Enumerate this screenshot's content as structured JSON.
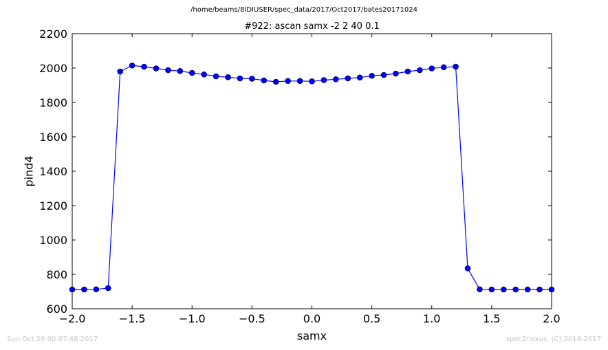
{
  "suptitle": "/home/beams/8IDIUSER/spec_data/2017/Oct2017/bates20171024",
  "footer": {
    "left": "Sun Oct 29 00:07:48 2017",
    "right": "spec2nexus, (C) 2014-2017"
  },
  "chart_data": {
    "type": "line",
    "title": "#922: ascan  samx -2 2  40 0.1",
    "xlabel": "samx",
    "ylabel": "pind4",
    "xlim": [
      -2.0,
      2.0
    ],
    "ylim": [
      600,
      2200
    ],
    "xticks": [
      -2.0,
      -1.5,
      -1.0,
      -0.5,
      0.0,
      0.5,
      1.0,
      1.5,
      2.0
    ],
    "xtick_labels": [
      "−2.0",
      "−1.5",
      "−1.0",
      "−0.5",
      "0.0",
      "0.5",
      "1.0",
      "1.5",
      "2.0"
    ],
    "yticks": [
      600,
      800,
      1000,
      1200,
      1400,
      1600,
      1800,
      2000,
      2200
    ],
    "ytick_labels": [
      "600",
      "800",
      "1000",
      "1200",
      "1400",
      "1600",
      "1800",
      "2000",
      "2200"
    ],
    "grid": false,
    "series_color": "#0000ff",
    "series": [
      {
        "x": [
          -2.0,
          -1.9,
          -1.8,
          -1.7,
          -1.6,
          -1.5,
          -1.4,
          -1.3,
          -1.2,
          -1.1,
          -1.0,
          -0.9,
          -0.8,
          -0.7,
          -0.6,
          -0.5,
          -0.4,
          -0.3,
          -0.2,
          -0.1,
          0.0,
          0.1,
          0.2,
          0.3,
          0.4,
          0.5,
          0.6,
          0.7,
          0.8,
          0.9,
          1.0,
          1.1,
          1.2,
          1.3,
          1.4,
          1.5,
          1.6,
          1.7,
          1.8,
          1.9,
          2.0
        ],
        "y": [
          712,
          712,
          713,
          720,
          1980,
          2015,
          2008,
          1998,
          1988,
          1983,
          1972,
          1963,
          1952,
          1947,
          1940,
          1938,
          1928,
          1920,
          1925,
          1925,
          1923,
          1930,
          1935,
          1940,
          1945,
          1955,
          1960,
          1968,
          1980,
          1988,
          1998,
          2005,
          2008,
          835,
          713,
          712,
          712,
          712,
          712,
          712,
          712
        ]
      }
    ]
  }
}
